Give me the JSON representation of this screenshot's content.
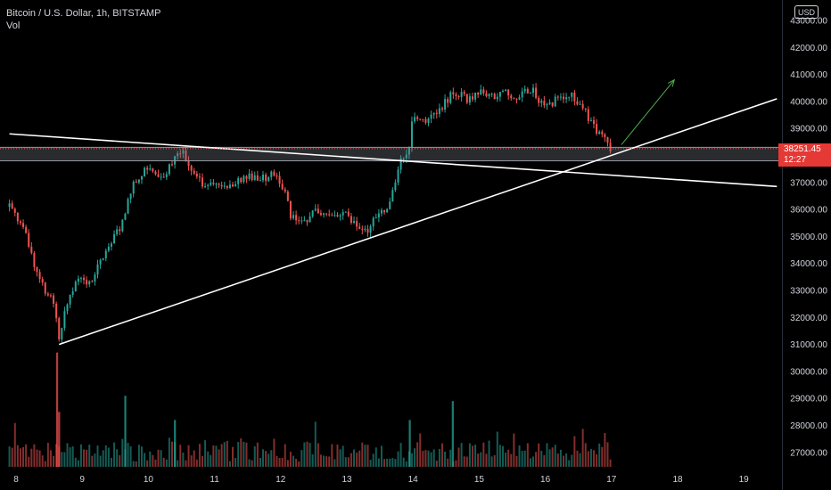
{
  "legend": {
    "title": "Bitcoin / U.S. Dollar, 1h, BITSTAMP",
    "volume_label": "Vol"
  },
  "currency": "USD",
  "last_price": {
    "value": "38251.45",
    "countdown": "12:27"
  },
  "colors": {
    "up": "#26a69a",
    "down": "#ef5350",
    "background": "#000000",
    "lines": "#ffffff",
    "arrow": "#4caf50"
  },
  "chart_data": {
    "type": "candlestick",
    "symbol": "BTCUSD",
    "interval": "1h",
    "ylim": [
      26500,
      43600
    ],
    "y_ticks": [
      {
        "value": 43000,
        "label": "43000.00"
      },
      {
        "value": 42000,
        "label": "42000.00"
      },
      {
        "value": 41000,
        "label": "41000.00"
      },
      {
        "value": 40000,
        "label": "40000.00"
      },
      {
        "value": 39000,
        "label": "39000.00"
      },
      {
        "value": 37000,
        "label": "37000.00"
      },
      {
        "value": 36000,
        "label": "36000.00"
      },
      {
        "value": 35000,
        "label": "35000.00"
      },
      {
        "value": 34000,
        "label": "34000.00"
      },
      {
        "value": 33000,
        "label": "33000.00"
      },
      {
        "value": 32000,
        "label": "32000.00"
      },
      {
        "value": 31000,
        "label": "31000.00"
      },
      {
        "value": 30000,
        "label": "30000.00"
      },
      {
        "value": 29000,
        "label": "29000.00"
      },
      {
        "value": 28000,
        "label": "28000.00"
      },
      {
        "value": 27000,
        "label": "27000.00"
      }
    ],
    "x_ticks": [
      "8",
      "9",
      "10",
      "11",
      "12",
      "13",
      "14",
      "15",
      "16",
      "17",
      "18",
      "19"
    ],
    "x_tick_days": [
      8,
      9,
      10,
      11,
      12,
      13,
      14,
      15,
      16,
      17,
      18,
      19
    ],
    "xlim_days": [
      7.9,
      19.5
    ],
    "price_path": [
      [
        7.9,
        36100
      ],
      [
        8.1,
        35400
      ],
      [
        8.3,
        33800
      ],
      [
        8.45,
        32800
      ],
      [
        8.55,
        32900
      ],
      [
        8.65,
        31300
      ],
      [
        8.75,
        32300
      ],
      [
        8.95,
        33600
      ],
      [
        9.1,
        33200
      ],
      [
        9.4,
        34700
      ],
      [
        9.6,
        35400
      ],
      [
        9.75,
        36800
      ],
      [
        9.95,
        37500
      ],
      [
        10.2,
        37100
      ],
      [
        10.4,
        37900
      ],
      [
        10.5,
        38300
      ],
      [
        10.65,
        37300
      ],
      [
        10.85,
        36900
      ],
      [
        11.05,
        36900
      ],
      [
        11.3,
        37000
      ],
      [
        11.5,
        37300
      ],
      [
        11.7,
        37100
      ],
      [
        11.9,
        37300
      ],
      [
        12.05,
        36800
      ],
      [
        12.15,
        35700
      ],
      [
        12.35,
        35500
      ],
      [
        12.55,
        36000
      ],
      [
        12.75,
        35700
      ],
      [
        12.95,
        35900
      ],
      [
        13.15,
        35500
      ],
      [
        13.3,
        35200
      ],
      [
        13.5,
        35900
      ],
      [
        13.65,
        36200
      ],
      [
        13.8,
        37700
      ],
      [
        13.95,
        38400
      ],
      [
        14.0,
        39500
      ],
      [
        14.2,
        39300
      ],
      [
        14.4,
        39600
      ],
      [
        14.6,
        40400
      ],
      [
        14.8,
        40100
      ],
      [
        15.0,
        40300
      ],
      [
        15.2,
        40200
      ],
      [
        15.4,
        40300
      ],
      [
        15.6,
        40200
      ],
      [
        15.8,
        40500
      ],
      [
        15.9,
        40100
      ],
      [
        16.0,
        39800
      ],
      [
        16.2,
        40100
      ],
      [
        16.4,
        40200
      ],
      [
        16.55,
        39900
      ],
      [
        16.7,
        39200
      ],
      [
        16.85,
        38700
      ],
      [
        17.0,
        38251
      ]
    ],
    "volume_scale_max": 28000,
    "volume_bars": [
      {
        "day": 8.62,
        "vol": 30700,
        "dir": "down"
      },
      {
        "day": 8.65,
        "vol": 28500,
        "dir": "down"
      },
      {
        "day": 9.65,
        "vol": 29100,
        "dir": "up"
      },
      {
        "day": 10.4,
        "vol": 28200,
        "dir": "up"
      },
      {
        "day": 13.95,
        "vol": 28200,
        "dir": "up"
      },
      {
        "day": 14.6,
        "vol": 28900,
        "dir": "up"
      }
    ],
    "annotations": [
      {
        "type": "horizontal_band",
        "from": 37800,
        "to": 38300,
        "label": ""
      },
      {
        "type": "trend_line",
        "from": {
          "day": 7.9,
          "price": 38800
        },
        "to": {
          "day": 19.5,
          "price": 36850
        }
      },
      {
        "type": "trend_line",
        "from": {
          "day": 8.65,
          "price": 31000
        },
        "to": {
          "day": 19.5,
          "price": 40100
        }
      },
      {
        "type": "arrow",
        "from": {
          "day": 17.15,
          "price": 38400
        },
        "to": {
          "day": 17.95,
          "price": 40800
        }
      }
    ],
    "grid": false,
    "legend_position": "top-left"
  }
}
